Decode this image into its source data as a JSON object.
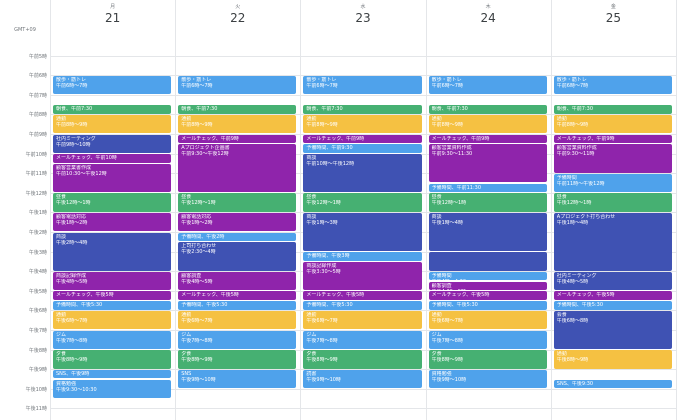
{
  "calendar": {
    "timezone": "GMT+09",
    "days": [
      {
        "dow": "月",
        "date": "21"
      },
      {
        "dow": "火",
        "date": "22"
      },
      {
        "dow": "水",
        "date": "23"
      },
      {
        "dow": "木",
        "date": "24"
      },
      {
        "dow": "金",
        "date": "25"
      }
    ],
    "hour_labels": [
      {
        "hour": 5,
        "label": "午前5時"
      },
      {
        "hour": 6,
        "label": "午前6時"
      },
      {
        "hour": 7,
        "label": "午前7時"
      },
      {
        "hour": 8,
        "label": "午前8時"
      },
      {
        "hour": 9,
        "label": "午前9時"
      },
      {
        "hour": 10,
        "label": "午前10時"
      },
      {
        "hour": 11,
        "label": "午前11時"
      },
      {
        "hour": 12,
        "label": "午後12時"
      },
      {
        "hour": 13,
        "label": "午後1時"
      },
      {
        "hour": 14,
        "label": "午後2時"
      },
      {
        "hour": 15,
        "label": "午後3時"
      },
      {
        "hour": 16,
        "label": "午後4時"
      },
      {
        "hour": 17,
        "label": "午後5時"
      },
      {
        "hour": 18,
        "label": "午後6時"
      },
      {
        "hour": 19,
        "label": "午後7時"
      },
      {
        "hour": 20,
        "label": "午後8時"
      },
      {
        "hour": 21,
        "label": "午後9時"
      },
      {
        "hour": 22,
        "label": "午後10時"
      },
      {
        "hour": 23,
        "label": "午後11時"
      }
    ],
    "colors": {
      "blue": "#4fa2eb",
      "green": "#46b072",
      "yellow": "#f5c142",
      "indigo": "#3f52b3",
      "purple": "#8f24ab"
    },
    "events": [
      {
        "day": 0,
        "start": 6.0,
        "end": 7.0,
        "color": "blue",
        "title": "散歩・筋トレ",
        "sub": "午前6時～7時"
      },
      {
        "day": 0,
        "start": 7.5,
        "end": 8.0,
        "color": "green",
        "title": "朝食、午前7:30",
        "sub": ""
      },
      {
        "day": 0,
        "start": 8.0,
        "end": 9.0,
        "color": "yellow",
        "title": "通勤",
        "sub": "午前8時～9時"
      },
      {
        "day": 0,
        "start": 9.0,
        "end": 10.0,
        "color": "indigo",
        "title": "社内ミーティング",
        "sub": "午前9時～10時"
      },
      {
        "day": 0,
        "start": 10.0,
        "end": 10.5,
        "color": "purple",
        "title": "メールチェック、午前10時",
        "sub": ""
      },
      {
        "day": 0,
        "start": 10.5,
        "end": 12.0,
        "color": "purple",
        "title": "顧客営業書作成",
        "sub": "午前10:30～午後12時"
      },
      {
        "day": 0,
        "start": 12.0,
        "end": 13.0,
        "color": "green",
        "title": "昼食",
        "sub": "午後12時～1時"
      },
      {
        "day": 0,
        "start": 13.0,
        "end": 14.0,
        "color": "purple",
        "title": "顧客電話対応",
        "sub": "午後1時～2時"
      },
      {
        "day": 0,
        "start": 14.0,
        "end": 16.0,
        "color": "indigo",
        "title": "商談",
        "sub": "午後2時～4時"
      },
      {
        "day": 0,
        "start": 16.0,
        "end": 17.0,
        "color": "purple",
        "title": "商談記録作成",
        "sub": "午後4時～5時"
      },
      {
        "day": 0,
        "start": 17.0,
        "end": 17.5,
        "color": "purple",
        "title": "メールチェック、午後5時",
        "sub": ""
      },
      {
        "day": 0,
        "start": 17.5,
        "end": 18.0,
        "color": "blue",
        "title": "予備時間、午後5:30",
        "sub": ""
      },
      {
        "day": 0,
        "start": 18.0,
        "end": 19.0,
        "color": "yellow",
        "title": "通勤",
        "sub": "午後6時～7時"
      },
      {
        "day": 0,
        "start": 19.0,
        "end": 20.0,
        "color": "blue",
        "title": "ジム",
        "sub": "午後7時～8時"
      },
      {
        "day": 0,
        "start": 20.0,
        "end": 21.0,
        "color": "green",
        "title": "夕食",
        "sub": "午後8時～9時"
      },
      {
        "day": 0,
        "start": 21.0,
        "end": 21.5,
        "color": "blue",
        "title": "SNS、午後9時",
        "sub": ""
      },
      {
        "day": 0,
        "start": 21.5,
        "end": 22.5,
        "color": "blue",
        "title": "資格勉強",
        "sub": "午後9:30～10:30"
      },
      {
        "day": 1,
        "start": 6.0,
        "end": 7.0,
        "color": "blue",
        "title": "散歩・筋トレ",
        "sub": "午前6時～7時"
      },
      {
        "day": 1,
        "start": 7.5,
        "end": 8.0,
        "color": "green",
        "title": "朝食、午前7:30",
        "sub": ""
      },
      {
        "day": 1,
        "start": 8.0,
        "end": 9.0,
        "color": "yellow",
        "title": "通勤",
        "sub": "午前8時～9時"
      },
      {
        "day": 1,
        "start": 9.0,
        "end": 9.5,
        "color": "purple",
        "title": "メールチェック、午前9時",
        "sub": ""
      },
      {
        "day": 1,
        "start": 9.5,
        "end": 12.0,
        "color": "purple",
        "title": "Aプロジェクト企画書",
        "sub": "午前9:30～午後12時"
      },
      {
        "day": 1,
        "start": 12.0,
        "end": 13.0,
        "color": "green",
        "title": "昼食",
        "sub": "午後12時～1時"
      },
      {
        "day": 1,
        "start": 13.0,
        "end": 14.0,
        "color": "purple",
        "title": "顧客電話対応",
        "sub": "午後1時～2時"
      },
      {
        "day": 1,
        "start": 14.0,
        "end": 14.5,
        "color": "blue",
        "title": "予備時間、午後2時",
        "sub": ""
      },
      {
        "day": 1,
        "start": 14.5,
        "end": 16.0,
        "color": "indigo",
        "title": "上司打ち合わせ",
        "sub": "午後2:30～4時"
      },
      {
        "day": 1,
        "start": 16.0,
        "end": 17.0,
        "color": "purple",
        "title": "顧客調査",
        "sub": "午後4時～5時"
      },
      {
        "day": 1,
        "start": 17.0,
        "end": 17.5,
        "color": "purple",
        "title": "メールチェック、午後5時",
        "sub": ""
      },
      {
        "day": 1,
        "start": 17.5,
        "end": 18.0,
        "color": "blue",
        "title": "予備時間、午後5:30",
        "sub": ""
      },
      {
        "day": 1,
        "start": 18.0,
        "end": 19.0,
        "color": "yellow",
        "title": "通勤",
        "sub": "午後6時～7時"
      },
      {
        "day": 1,
        "start": 19.0,
        "end": 20.0,
        "color": "blue",
        "title": "ジム",
        "sub": "午後7時～8時"
      },
      {
        "day": 1,
        "start": 20.0,
        "end": 21.0,
        "color": "green",
        "title": "夕食",
        "sub": "午後8時～9時"
      },
      {
        "day": 1,
        "start": 21.0,
        "end": 22.0,
        "color": "blue",
        "title": "SNS",
        "sub": "午後9時～10時"
      },
      {
        "day": 2,
        "start": 6.0,
        "end": 7.0,
        "color": "blue",
        "title": "散歩・筋トレ",
        "sub": "午前6時～7時"
      },
      {
        "day": 2,
        "start": 7.5,
        "end": 8.0,
        "color": "green",
        "title": "朝食、午前7:30",
        "sub": ""
      },
      {
        "day": 2,
        "start": 8.0,
        "end": 9.0,
        "color": "yellow",
        "title": "通勤",
        "sub": "午前8時～9時"
      },
      {
        "day": 2,
        "start": 9.0,
        "end": 9.5,
        "color": "purple",
        "title": "メールチェック、午前9時",
        "sub": ""
      },
      {
        "day": 2,
        "start": 9.5,
        "end": 10.0,
        "color": "blue",
        "title": "予備時間、午前9:30",
        "sub": ""
      },
      {
        "day": 2,
        "start": 10.0,
        "end": 12.0,
        "color": "indigo",
        "title": "商談",
        "sub": "午前10時～午後12時"
      },
      {
        "day": 2,
        "start": 12.0,
        "end": 13.0,
        "color": "green",
        "title": "昼食",
        "sub": "午後12時～1時"
      },
      {
        "day": 2,
        "start": 13.0,
        "end": 15.0,
        "color": "indigo",
        "title": "商談",
        "sub": "午後1時～3時"
      },
      {
        "day": 2,
        "start": 15.0,
        "end": 15.5,
        "color": "blue",
        "title": "予備時間、午後3時",
        "sub": ""
      },
      {
        "day": 2,
        "start": 15.5,
        "end": 17.0,
        "color": "purple",
        "title": "商談記録作成",
        "sub": "午後3:30～5時"
      },
      {
        "day": 2,
        "start": 17.0,
        "end": 17.5,
        "color": "purple",
        "title": "メールチェック、午後5時",
        "sub": ""
      },
      {
        "day": 2,
        "start": 17.5,
        "end": 18.0,
        "color": "blue",
        "title": "予備時間、午後5:30",
        "sub": ""
      },
      {
        "day": 2,
        "start": 18.0,
        "end": 19.0,
        "color": "yellow",
        "title": "通勤",
        "sub": "午後6時～7時"
      },
      {
        "day": 2,
        "start": 19.0,
        "end": 20.0,
        "color": "blue",
        "title": "ジム",
        "sub": "午後7時～8時"
      },
      {
        "day": 2,
        "start": 20.0,
        "end": 21.0,
        "color": "green",
        "title": "夕食",
        "sub": "午後8時～9時"
      },
      {
        "day": 2,
        "start": 21.0,
        "end": 22.0,
        "color": "blue",
        "title": "読書",
        "sub": "午後9時～10時"
      },
      {
        "day": 3,
        "start": 6.0,
        "end": 7.0,
        "color": "blue",
        "title": "散歩・筋トレ",
        "sub": "午前6時～7時"
      },
      {
        "day": 3,
        "start": 7.5,
        "end": 8.0,
        "color": "green",
        "title": "朝食、午前7:30",
        "sub": ""
      },
      {
        "day": 3,
        "start": 8.0,
        "end": 9.0,
        "color": "yellow",
        "title": "通勤",
        "sub": "午前8時～9時"
      },
      {
        "day": 3,
        "start": 9.0,
        "end": 9.5,
        "color": "purple",
        "title": "メールチェック、午前9時",
        "sub": ""
      },
      {
        "day": 3,
        "start": 9.5,
        "end": 11.5,
        "color": "purple",
        "title": "顧客営業資料作成",
        "sub": "午前9:30～11:30"
      },
      {
        "day": 3,
        "start": 11.5,
        "end": 12.0,
        "color": "blue",
        "title": "予備時間、午前11:30",
        "sub": ""
      },
      {
        "day": 3,
        "start": 12.0,
        "end": 13.0,
        "color": "green",
        "title": "昼食",
        "sub": "午後12時～1時"
      },
      {
        "day": 3,
        "start": 13.0,
        "end": 15.0,
        "color": "indigo",
        "title": "商談",
        "sub": "午後1時～4時"
      },
      {
        "day": 3,
        "start": 15.0,
        "end": 16.0,
        "color": "indigo",
        "title": "",
        "sub": ""
      },
      {
        "day": 3,
        "start": 16.0,
        "end": 16.5,
        "color": "blue",
        "title": "予備時間",
        "sub": "午後4時～4:30"
      },
      {
        "day": 3,
        "start": 16.5,
        "end": 17.0,
        "color": "purple",
        "title": "顧客調査",
        "sub": "午後4:30～5時"
      },
      {
        "day": 3,
        "start": 17.0,
        "end": 17.5,
        "color": "purple",
        "title": "メールチェック、午後5時",
        "sub": ""
      },
      {
        "day": 3,
        "start": 17.5,
        "end": 18.0,
        "color": "blue",
        "title": "予備時間、午後5:30",
        "sub": ""
      },
      {
        "day": 3,
        "start": 18.0,
        "end": 19.0,
        "color": "yellow",
        "title": "通勤",
        "sub": "午後6時～7時"
      },
      {
        "day": 3,
        "start": 19.0,
        "end": 20.0,
        "color": "blue",
        "title": "ジム",
        "sub": "午後7時～8時"
      },
      {
        "day": 3,
        "start": 20.0,
        "end": 21.0,
        "color": "green",
        "title": "夕食",
        "sub": "午後8時～9時"
      },
      {
        "day": 3,
        "start": 21.0,
        "end": 22.0,
        "color": "blue",
        "title": "資格勉強",
        "sub": "午後9時～10時"
      },
      {
        "day": 4,
        "start": 6.0,
        "end": 7.0,
        "color": "blue",
        "title": "散歩・筋トレ",
        "sub": "午前6時～7時"
      },
      {
        "day": 4,
        "start": 7.5,
        "end": 8.0,
        "color": "green",
        "title": "朝食、午前7:30",
        "sub": ""
      },
      {
        "day": 4,
        "start": 8.0,
        "end": 9.0,
        "color": "yellow",
        "title": "通勤",
        "sub": "午前8時～9時"
      },
      {
        "day": 4,
        "start": 9.0,
        "end": 9.5,
        "color": "purple",
        "title": "メールチェック、午前9時",
        "sub": ""
      },
      {
        "day": 4,
        "start": 9.5,
        "end": 11.0,
        "color": "purple",
        "title": "顧客営業資料作成",
        "sub": "午前9:30～11時"
      },
      {
        "day": 4,
        "start": 11.0,
        "end": 12.0,
        "color": "blue",
        "title": "予備時間",
        "sub": "午前11時～午後12時"
      },
      {
        "day": 4,
        "start": 12.0,
        "end": 13.0,
        "color": "green",
        "title": "昼食",
        "sub": "午後12時～1時"
      },
      {
        "day": 4,
        "start": 13.0,
        "end": 16.0,
        "color": "indigo",
        "title": "Aプロジェクト打ち合わせ",
        "sub": "午後1時～4時"
      },
      {
        "day": 4,
        "start": 16.0,
        "end": 17.0,
        "color": "indigo",
        "title": "社内ミーティング",
        "sub": "午後4時～5時"
      },
      {
        "day": 4,
        "start": 17.0,
        "end": 17.5,
        "color": "purple",
        "title": "メールチェック、午後5時",
        "sub": ""
      },
      {
        "day": 4,
        "start": 17.5,
        "end": 18.0,
        "color": "blue",
        "title": "予備時間、午後5:30",
        "sub": ""
      },
      {
        "day": 4,
        "start": 18.0,
        "end": 20.0,
        "color": "indigo",
        "title": "会食",
        "sub": "午後6時～8時"
      },
      {
        "day": 4,
        "start": 20.0,
        "end": 21.0,
        "color": "yellow",
        "title": "通勤",
        "sub": "午後8時～9時"
      },
      {
        "day": 4,
        "start": 21.5,
        "end": 22.0,
        "color": "blue",
        "title": "SNS、午後9:30",
        "sub": ""
      }
    ]
  }
}
